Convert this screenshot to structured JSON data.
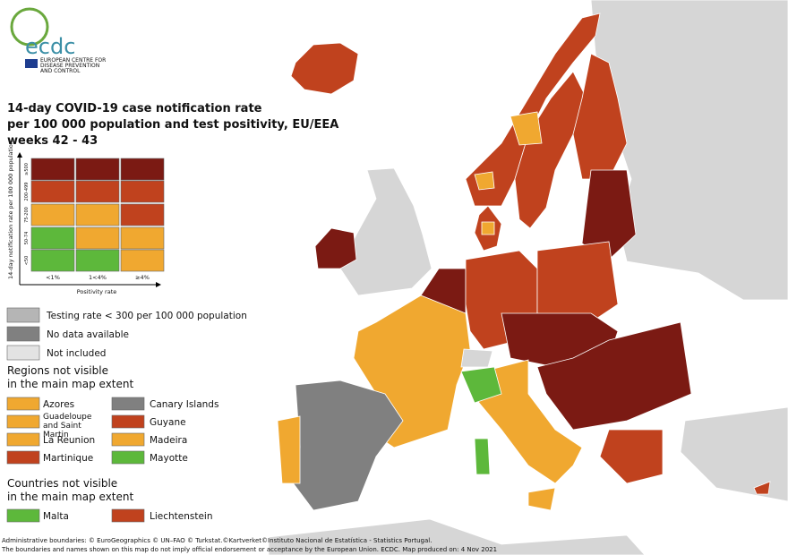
{
  "logo": {
    "name": "ecdc",
    "subtitle": [
      "EUROPEAN CENTRE FOR",
      "DISEASE PREVENTION",
      "AND CONTROL"
    ]
  },
  "title": [
    "14-day COVID-19 case notification rate",
    "per 100 000 population and test positivity, EU/EEA",
    "weeks 42 - 43"
  ],
  "matrix": {
    "y_axis_title": "14-day notification rate per 100 000 population",
    "rows": [
      "≥500",
      "200-499",
      "75-200",
      "50-74",
      "<50"
    ],
    "columns": [
      "<1%",
      "1<4%",
      "≥4%"
    ],
    "x_axis_title": "Positivity rate"
  },
  "legend": [
    "Testing rate < 300 per 100 000 population",
    "No data available",
    "Not included"
  ],
  "regions": {
    "title": [
      "Regions not visible",
      "in the main map extent"
    ],
    "items": [
      "Azores",
      "Canary Islands",
      "Guadeloupe and Saint Martin",
      "Guyane",
      "La Reunion",
      "Madeira",
      "Martinique",
      "Mayotte"
    ]
  },
  "countries": {
    "title": [
      "Countries not visible",
      "in the main map extent"
    ],
    "items": [
      "Malta",
      "Liechtenstein"
    ]
  },
  "footer": [
    "Administrative boundaries: © EuroGeographics © UN–FAO © Turkstat.©Kartverket©Instituto Nacional de Estatística - Statistics Portugal.",
    "The boundaries and names shown on this map do not imply official endorsement or acceptance by the European Union. ECDC. Map produced on: 4 Nov 2021"
  ]
}
